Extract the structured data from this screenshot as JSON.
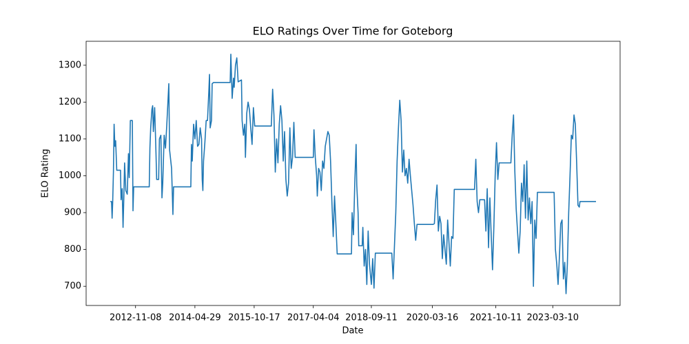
{
  "chart_data": {
    "type": "line",
    "title": "ELO Ratings Over Time for Goteborg",
    "xlabel": "Date",
    "ylabel": "ELO Rating",
    "color": "#1f77b4",
    "x": [
      "2012-03-25",
      "2012-04-05",
      "2012-04-10",
      "2012-04-15",
      "2012-04-22",
      "2012-04-28",
      "2012-05-05",
      "2012-05-12",
      "2012-05-22",
      "2012-06-25",
      "2012-06-30",
      "2012-07-10",
      "2012-07-18",
      "2012-07-25",
      "2012-08-01",
      "2012-08-12",
      "2012-08-25",
      "2012-09-05",
      "2012-09-12",
      "2012-09-22",
      "2012-10-10",
      "2012-10-16",
      "2012-10-22",
      "2013-03-12",
      "2013-03-18",
      "2013-03-25",
      "2013-04-05",
      "2013-04-12",
      "2013-04-18",
      "2013-04-30",
      "2013-05-12",
      "2013-05-18",
      "2013-06-05",
      "2013-06-12",
      "2013-06-25",
      "2013-07-05",
      "2013-07-12",
      "2013-07-25",
      "2013-08-06",
      "2013-08-18",
      "2013-09-05",
      "2013-09-12",
      "2013-09-30",
      "2013-10-12",
      "2013-10-18",
      "2014-03-23",
      "2014-03-29",
      "2014-04-05",
      "2014-04-17",
      "2014-04-29",
      "2014-05-11",
      "2014-05-23",
      "2014-06-04",
      "2014-06-16",
      "2014-06-28",
      "2014-07-04",
      "2014-07-10",
      "2014-07-16",
      "2014-07-28",
      "2014-08-09",
      "2014-08-21",
      "2014-09-02",
      "2014-09-08",
      "2014-09-14",
      "2014-09-26",
      "2014-10-02",
      "2014-10-14",
      "2015-03-14",
      "2015-03-20",
      "2015-04-01",
      "2015-04-13",
      "2015-04-19",
      "2015-05-01",
      "2015-05-13",
      "2015-05-25",
      "2015-06-24",
      "2015-06-30",
      "2015-07-12",
      "2015-07-24",
      "2015-07-30",
      "2015-08-11",
      "2015-08-23",
      "2015-09-04",
      "2015-09-16",
      "2015-09-28",
      "2015-10-10",
      "2015-10-22",
      "2016-03-20",
      "2016-04-01",
      "2016-04-13",
      "2016-04-25",
      "2016-05-07",
      "2016-05-19",
      "2016-05-31",
      "2016-06-12",
      "2016-06-24",
      "2016-07-06",
      "2016-07-18",
      "2016-07-30",
      "2016-08-11",
      "2016-08-23",
      "2016-09-04",
      "2016-09-16",
      "2016-09-28",
      "2016-10-10",
      "2016-10-22",
      "2017-04-04",
      "2017-04-10",
      "2017-04-22",
      "2017-05-04",
      "2017-05-10",
      "2017-05-22",
      "2017-06-03",
      "2017-06-15",
      "2017-06-27",
      "2017-07-09",
      "2017-07-21",
      "2017-08-02",
      "2017-08-14",
      "2017-08-26",
      "2017-09-07",
      "2017-09-19",
      "2017-10-01",
      "2017-10-13",
      "2017-10-25",
      "2017-11-06",
      "2018-03-15",
      "2018-03-21",
      "2018-04-02",
      "2018-04-14",
      "2018-04-26",
      "2018-05-02",
      "2018-05-14",
      "2018-05-20",
      "2018-06-20",
      "2018-06-26",
      "2018-07-08",
      "2018-07-20",
      "2018-08-01",
      "2018-08-13",
      "2018-08-25",
      "2018-09-11",
      "2018-09-23",
      "2018-10-05",
      "2018-10-17",
      "2019-03-15",
      "2019-03-27",
      "2019-04-08",
      "2019-04-20",
      "2019-05-02",
      "2019-05-14",
      "2019-05-26",
      "2019-06-07",
      "2019-06-19",
      "2019-07-01",
      "2019-07-13",
      "2019-07-25",
      "2019-08-06",
      "2019-08-18",
      "2019-08-30",
      "2019-09-11",
      "2019-09-23",
      "2019-10-05",
      "2019-10-17",
      "2019-10-29",
      "2020-03-22",
      "2020-04-03",
      "2020-04-15",
      "2020-04-27",
      "2020-05-09",
      "2020-05-21",
      "2020-06-02",
      "2020-06-14",
      "2020-06-26",
      "2020-07-08",
      "2020-07-20",
      "2020-08-01",
      "2020-08-13",
      "2020-08-25",
      "2020-09-06",
      "2020-09-18",
      "2020-09-30",
      "2021-04-01",
      "2021-04-13",
      "2021-04-25",
      "2021-05-07",
      "2021-05-19",
      "2021-07-01",
      "2021-07-13",
      "2021-07-25",
      "2021-08-06",
      "2021-08-18",
      "2021-08-30",
      "2021-09-11",
      "2021-09-23",
      "2021-10-05",
      "2021-10-17",
      "2021-10-29",
      "2021-11-10",
      "2022-02-24",
      "2022-03-08",
      "2022-03-20",
      "2022-04-01",
      "2022-04-13",
      "2022-04-25",
      "2022-05-07",
      "2022-05-19",
      "2022-05-31",
      "2022-06-12",
      "2022-06-24",
      "2022-07-06",
      "2022-07-18",
      "2022-07-30",
      "2022-08-11",
      "2022-08-23",
      "2022-09-04",
      "2022-09-16",
      "2022-09-28",
      "2022-10-10",
      "2022-10-22",
      "2023-03-22",
      "2023-04-03",
      "2023-04-15",
      "2023-04-27",
      "2023-05-09",
      "2023-05-21",
      "2023-06-02",
      "2023-06-14",
      "2023-06-26",
      "2023-07-08",
      "2023-07-20",
      "2023-08-01",
      "2023-08-13",
      "2023-08-25",
      "2023-09-06",
      "2023-09-18",
      "2023-09-30",
      "2023-10-12",
      "2023-10-24",
      "2023-11-05",
      "2023-11-11",
      "2024-04-04"
    ],
    "values": [
      930,
      930,
      885,
      925,
      1010,
      1140,
      1080,
      1095,
      1015,
      1015,
      935,
      965,
      860,
      940,
      1035,
      960,
      950,
      1060,
      995,
      1150,
      1150,
      905,
      970,
      970,
      1075,
      1130,
      1180,
      1190,
      1120,
      1185,
      1060,
      990,
      990,
      1100,
      1110,
      940,
      980,
      1110,
      1075,
      1140,
      1250,
      1070,
      1020,
      895,
      970,
      970,
      1085,
      1040,
      1140,
      1100,
      1150,
      1080,
      1085,
      1130,
      1100,
      990,
      960,
      1040,
      1090,
      1150,
      1150,
      1230,
      1275,
      1130,
      1150,
      1250,
      1253,
      1253,
      1330,
      1210,
      1265,
      1240,
      1300,
      1320,
      1255,
      1260,
      1150,
      1110,
      1140,
      1050,
      1170,
      1200,
      1180,
      1130,
      1085,
      1185,
      1135,
      1135,
      1235,
      1165,
      1010,
      1100,
      1035,
      1140,
      1190,
      1150,
      1040,
      1120,
      990,
      945,
      980,
      1130,
      1020,
      1050,
      1145,
      1050,
      1050,
      1125,
      1050,
      1000,
      945,
      1020,
      1010,
      960,
      1040,
      1020,
      1080,
      1100,
      1120,
      1110,
      1040,
      930,
      835,
      945,
      870,
      788,
      788,
      900,
      840,
      980,
      1085,
      975,
      900,
      810,
      810,
      860,
      755,
      800,
      705,
      850,
      760,
      705,
      775,
      695,
      790,
      790,
      720,
      810,
      900,
      1040,
      1130,
      1205,
      1150,
      1010,
      1070,
      1000,
      1020,
      980,
      1045,
      1000,
      960,
      920,
      870,
      825,
      868,
      868,
      870,
      935,
      975,
      850,
      890,
      870,
      775,
      840,
      800,
      760,
      880,
      820,
      755,
      835,
      830,
      963,
      963,
      1045,
      930,
      900,
      935,
      935,
      850,
      965,
      805,
      940,
      840,
      745,
      860,
      1000,
      1090,
      990,
      1035,
      1035,
      1110,
      1165,
      1010,
      910,
      850,
      790,
      850,
      980,
      930,
      1030,
      885,
      1040,
      880,
      940,
      870,
      930,
      700,
      880,
      830,
      955,
      955,
      800,
      760,
      705,
      780,
      870,
      880,
      720,
      765,
      680,
      760,
      900,
      1000,
      1110,
      1100,
      1165,
      1140,
      1035,
      920,
      915,
      930,
      930
    ],
    "xlim": [
      "2011-08-19",
      "2024-11-08"
    ],
    "xticks": [
      "2012-11-08",
      "2014-04-29",
      "2015-10-17",
      "2017-04-04",
      "2018-09-11",
      "2020-03-16",
      "2021-10-11",
      "2023-03-10"
    ],
    "ylim": [
      648,
      1365
    ],
    "yticks": [
      700,
      800,
      900,
      1000,
      1100,
      1200,
      1300
    ]
  }
}
